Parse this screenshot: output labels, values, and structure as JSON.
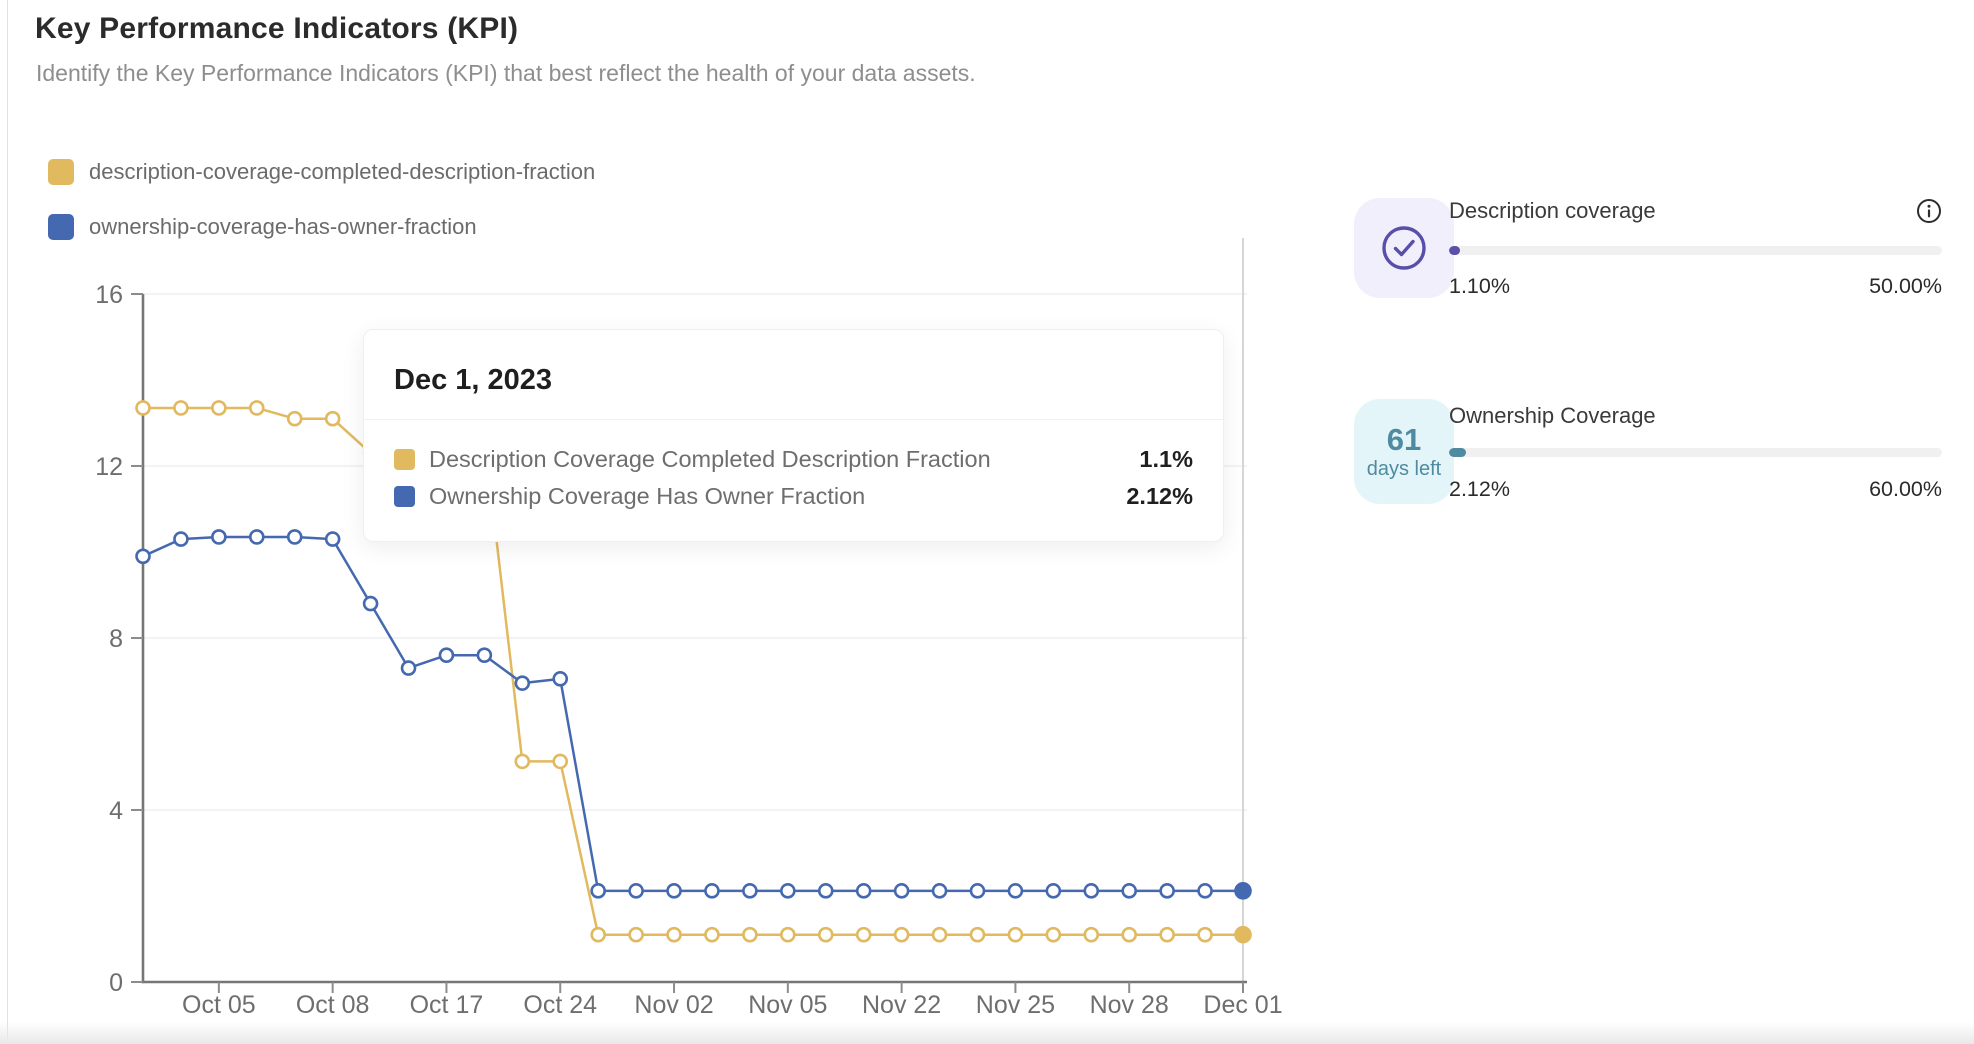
{
  "header": {
    "title": "Key Performance Indicators (KPI)",
    "subtitle": "Identify the Key Performance Indicators (KPI) that best reflect the health of your data assets."
  },
  "legend": {
    "items": [
      {
        "label": "description-coverage-completed-description-fraction",
        "color": "#E1B95F"
      },
      {
        "label": "ownership-coverage-has-owner-fraction",
        "color": "#4569B0"
      }
    ]
  },
  "tooltip": {
    "date": "Dec 1, 2023",
    "rows": [
      {
        "label": "Description Coverage Completed Description Fraction",
        "value": "1.1%",
        "color": "#E1B95F"
      },
      {
        "label": "Ownership Coverage Has Owner Fraction",
        "value": "2.12%",
        "color": "#4569B0"
      }
    ]
  },
  "kpi_cards": [
    {
      "title": "Description coverage",
      "current": "1.10%",
      "target": "50.00%",
      "current_pct": 1.1,
      "target_pct": 50.0,
      "accent": "#5B51A8",
      "tile_bg": "#F1EFFB",
      "tile_icon": "check-circle",
      "has_info_icon": true
    },
    {
      "title": "Ownership Coverage",
      "current": "2.12%",
      "target": "60.00%",
      "current_pct": 2.12,
      "target_pct": 60.0,
      "accent": "#4F8BA0",
      "tile_bg": "#E3F5F9",
      "tile_value": "61",
      "tile_caption": "days left",
      "has_info_icon": false
    }
  ],
  "chart_data": {
    "type": "line",
    "title": "",
    "xlabel": "",
    "ylabel": "",
    "ylim": [
      0,
      16
    ],
    "yticks": [
      0,
      4,
      8,
      12,
      16
    ],
    "grid": true,
    "legend_position": "top-left",
    "num_points": 30,
    "x_tick_labels": [
      "Oct 05",
      "Oct 08",
      "Oct 17",
      "Oct 24",
      "Nov 02",
      "Nov 05",
      "Nov 22",
      "Nov 25",
      "Nov 28",
      "Dec 01"
    ],
    "x_tick_point_indices": [
      2,
      5,
      8,
      11,
      14,
      17,
      20,
      23,
      26,
      29
    ],
    "hover": {
      "point_index": 29,
      "date": "Dec 1, 2023"
    },
    "series": [
      {
        "name": "description-coverage-completed-description-fraction",
        "color": "#E1B95F",
        "values": [
          13.35,
          13.35,
          13.35,
          13.35,
          13.1,
          13.1,
          12.3,
          12.3,
          12.4,
          12.7,
          5.13,
          5.13,
          1.1,
          1.1,
          1.1,
          1.1,
          1.1,
          1.1,
          1.1,
          1.1,
          1.1,
          1.1,
          1.1,
          1.1,
          1.1,
          1.1,
          1.1,
          1.1,
          1.1,
          1.1
        ]
      },
      {
        "name": "ownership-coverage-has-owner-fraction",
        "color": "#4569B0",
        "values": [
          9.9,
          10.3,
          10.35,
          10.35,
          10.35,
          10.3,
          8.8,
          7.3,
          7.6,
          7.6,
          6.95,
          7.05,
          2.12,
          2.12,
          2.12,
          2.12,
          2.12,
          2.12,
          2.12,
          2.12,
          2.12,
          2.12,
          2.12,
          2.12,
          2.12,
          2.12,
          2.12,
          2.12,
          2.12,
          2.12
        ]
      }
    ]
  }
}
